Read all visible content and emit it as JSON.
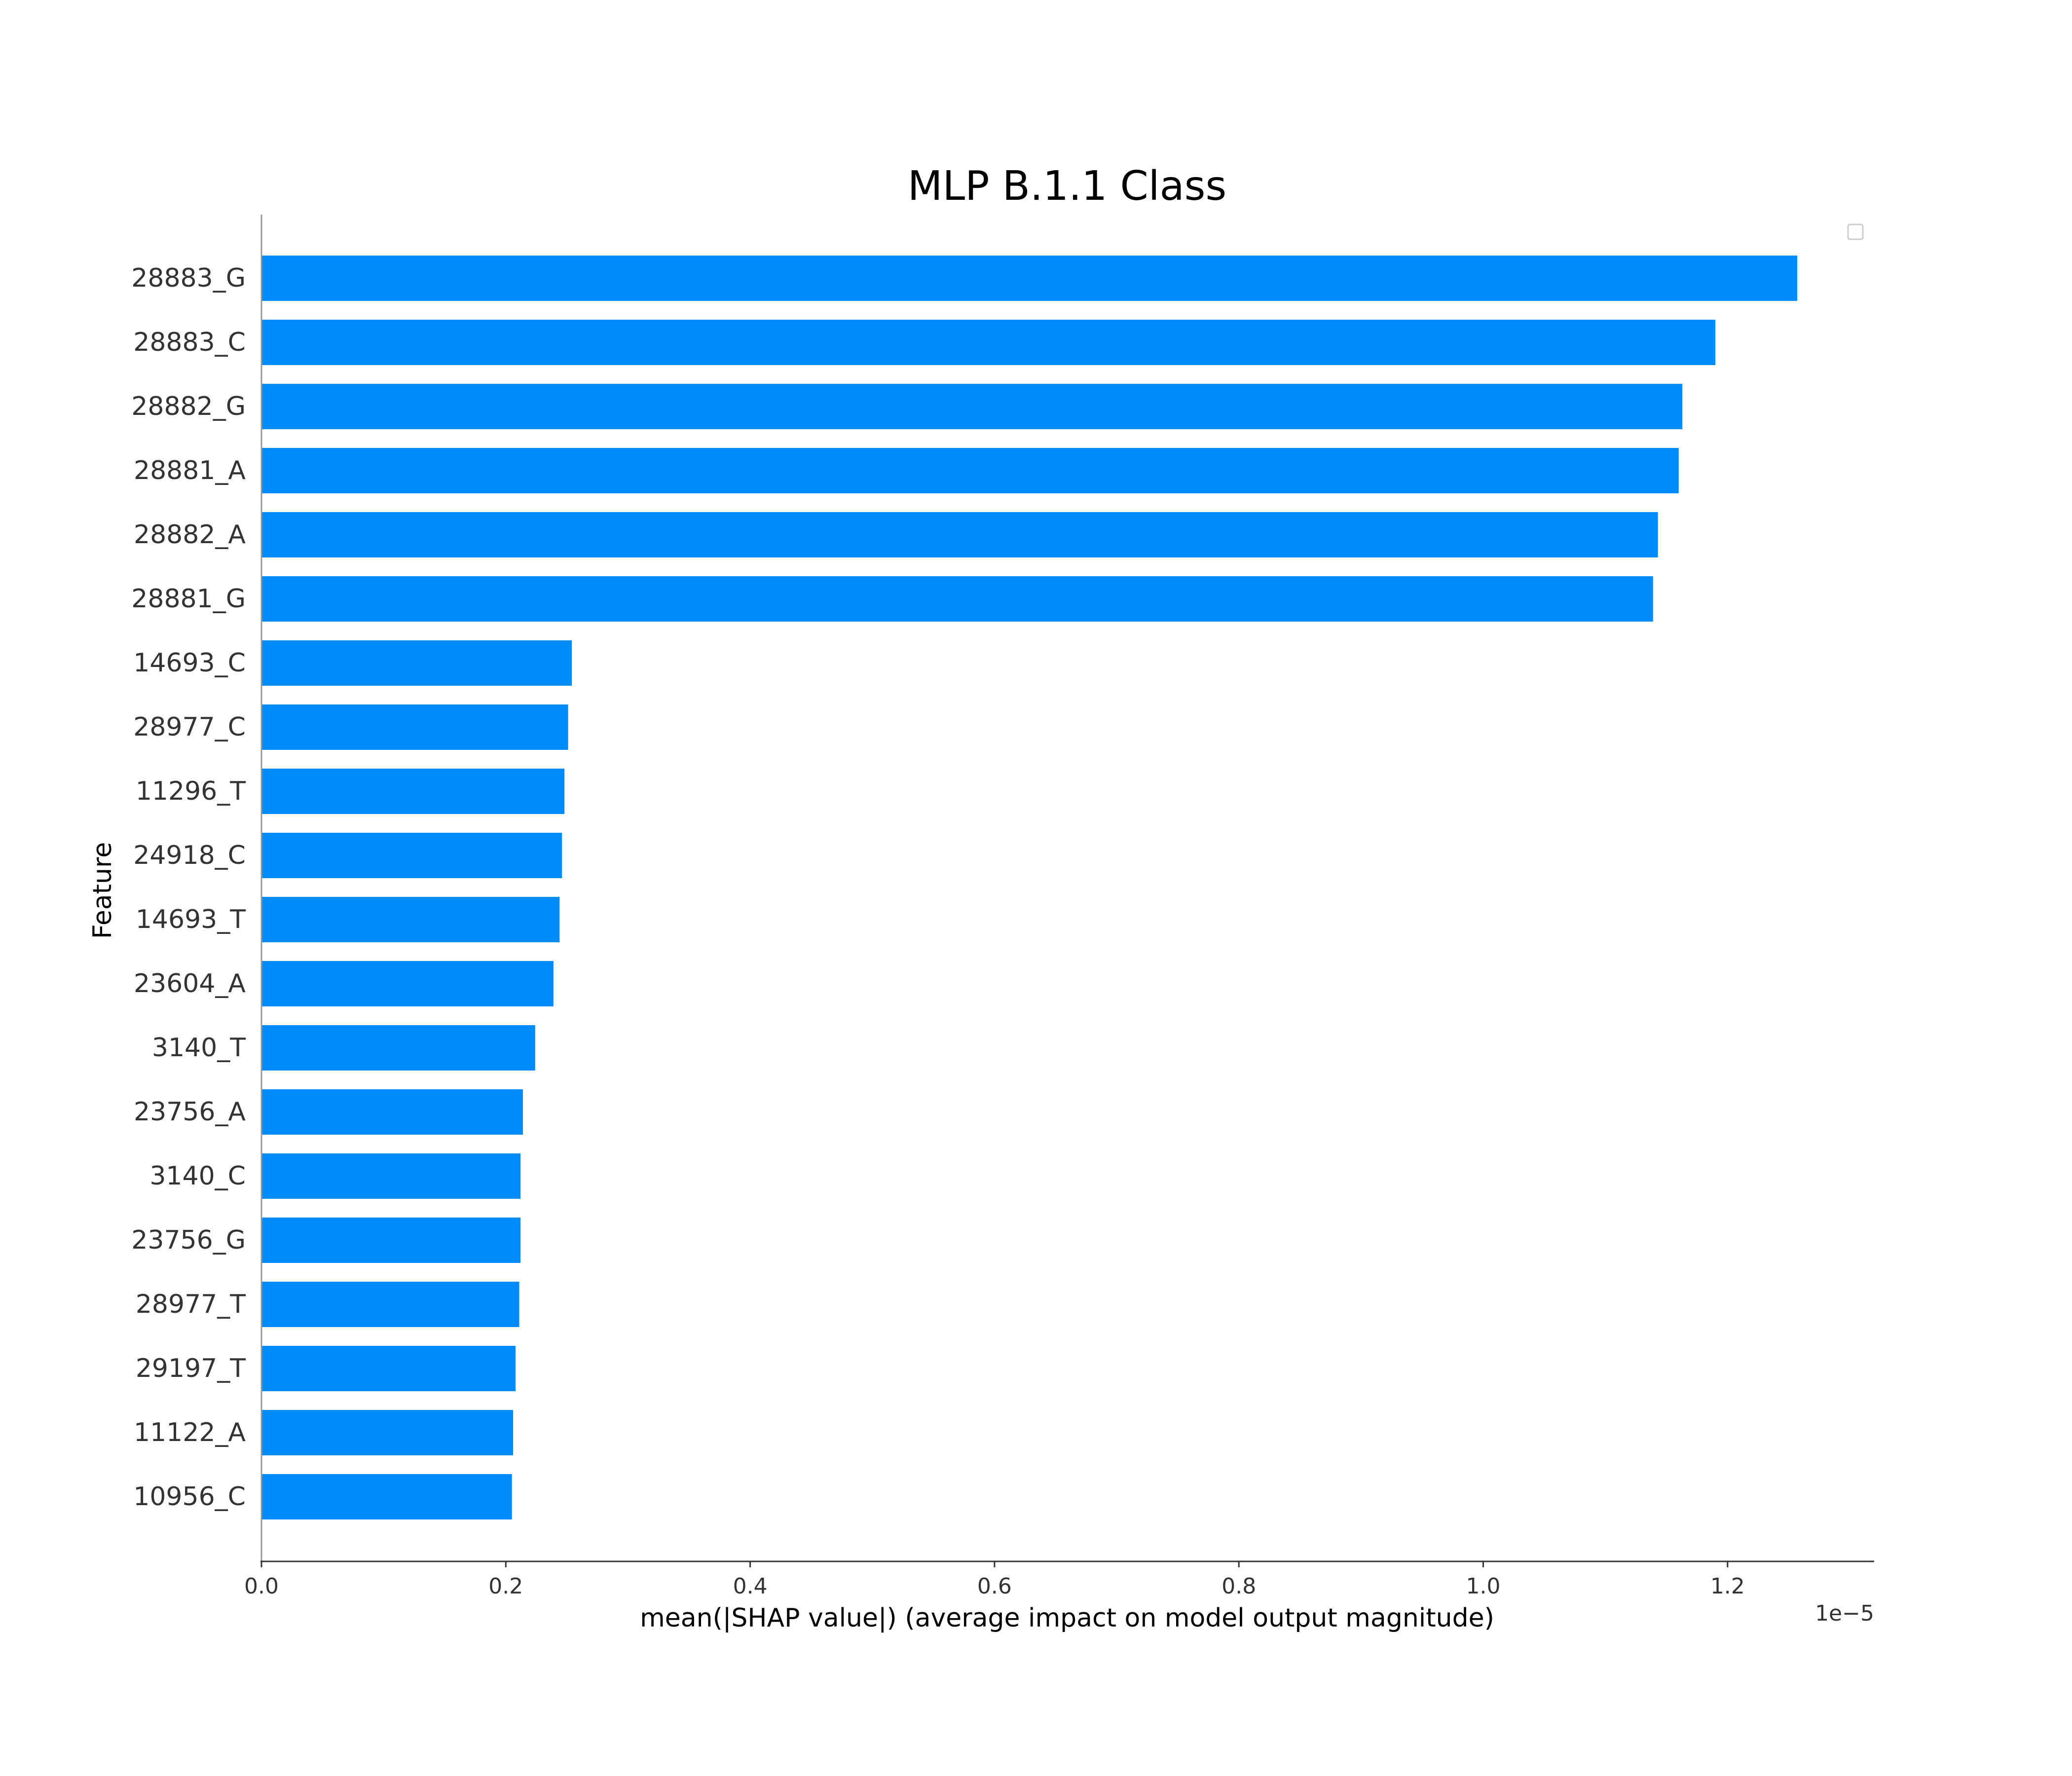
{
  "chart_data": {
    "type": "bar",
    "orientation": "horizontal",
    "title": "MLP B.1.1 Class",
    "xlabel": "mean(|SHAP value|) (average impact on model output magnitude)",
    "ylabel": "Feature",
    "x_offset_label": "1e−5",
    "xlim": [
      0,
      1.32
    ],
    "xticks": [
      0.0,
      0.2,
      0.4,
      0.6,
      0.8,
      1.0,
      1.2
    ],
    "xtick_labels": [
      "0.0",
      "0.2",
      "0.4",
      "0.6",
      "0.8",
      "1.0",
      "1.2"
    ],
    "categories": [
      "28883_G",
      "28883_C",
      "28882_G",
      "28881_A",
      "28882_A",
      "28881_G",
      "14693_C",
      "28977_C",
      "11296_T",
      "24918_C",
      "14693_T",
      "23604_A",
      "3140_T",
      "23756_A",
      "3140_C",
      "23756_G",
      "28977_T",
      "29197_T",
      "11122_A",
      "10956_C"
    ],
    "values": [
      1.257,
      1.19,
      1.163,
      1.16,
      1.143,
      1.139,
      0.254,
      0.251,
      0.248,
      0.246,
      0.244,
      0.239,
      0.224,
      0.214,
      0.212,
      0.212,
      0.211,
      0.208,
      0.206,
      0.205
    ],
    "bar_color": "#008bfb",
    "legend": "top-right",
    "legend_entries": [],
    "grid": false
  }
}
